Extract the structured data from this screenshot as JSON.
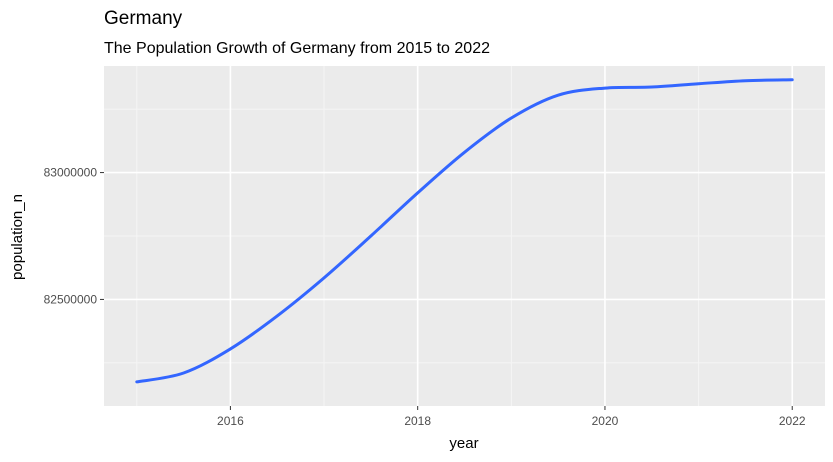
{
  "chart_data": {
    "type": "line",
    "title": "Germany",
    "subtitle": "The Population Growth of Germany from 2015 to 2022",
    "xlabel": "year",
    "ylabel": "population_n",
    "xlim": [
      2014.65,
      2022.35
    ],
    "ylim": [
      82080000,
      83420000
    ],
    "x_ticks": [
      2016,
      2018,
      2020,
      2022
    ],
    "y_ticks": [
      82500000,
      83000000
    ],
    "x_tick_labels": [
      "2016",
      "2018",
      "2020",
      "2022"
    ],
    "y_tick_labels": [
      "82500000",
      "83000000"
    ],
    "grid": true,
    "legend": "none",
    "series": [
      {
        "x": [
          2015.0,
          2015.5,
          2016.0,
          2016.5,
          2017.0,
          2017.5,
          2018.0,
          2018.5,
          2019.0,
          2019.5,
          2020.0,
          2020.5,
          2021.0,
          2021.5,
          2022.0
        ],
        "y": [
          82175000,
          82210000,
          82305000,
          82435000,
          82585000,
          82750000,
          82920000,
          83080000,
          83215000,
          83305000,
          83333000,
          83337000,
          83350000,
          83362000,
          83366000
        ]
      }
    ]
  },
  "colors": {
    "panel": "#ebebeb",
    "major_grid": "#ffffff",
    "minor_grid": "#f5f5f5",
    "line": "#3366ff",
    "tick": "#333333"
  }
}
